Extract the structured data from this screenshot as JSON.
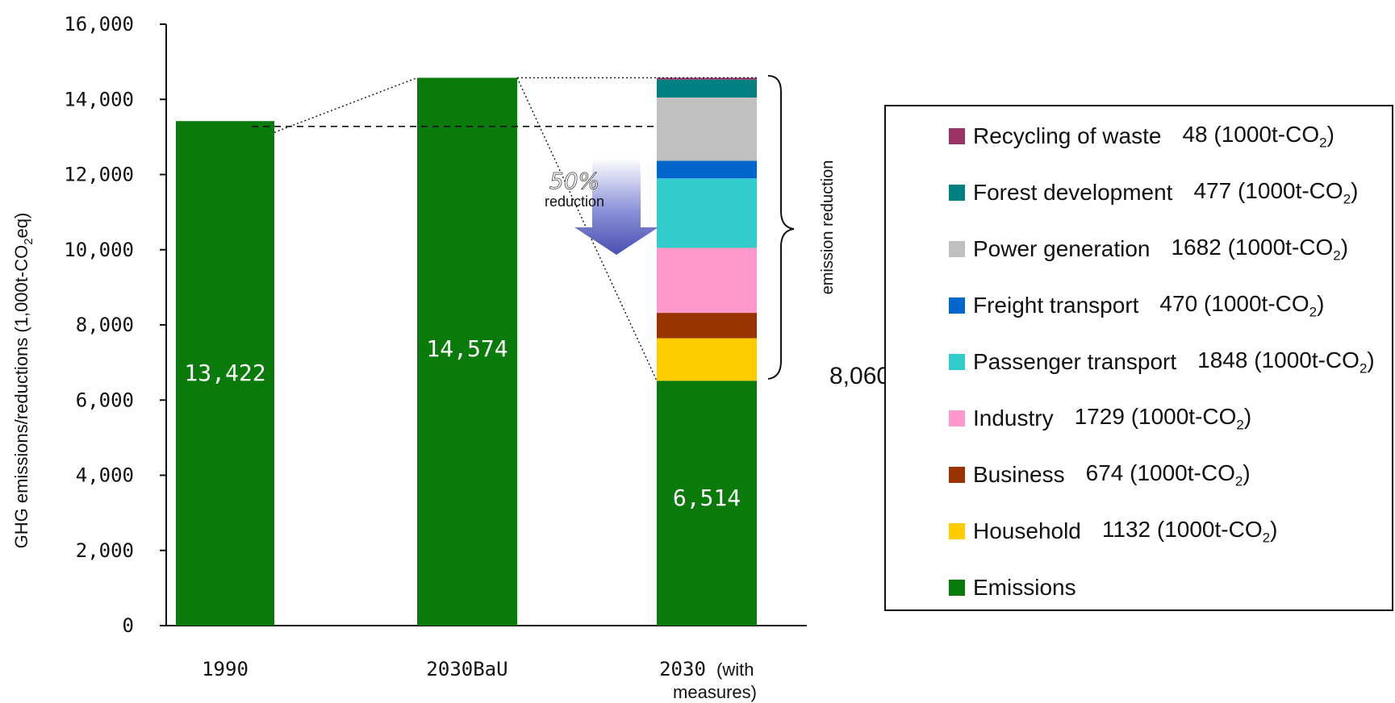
{
  "chart_data": {
    "type": "bar",
    "ylabel_main": "GHG emissions/reductions (1,000t-CO",
    "ylabel_sub": "2",
    "ylabel_end": "eq)",
    "ylim": [
      0,
      16000
    ],
    "yticks": [
      0,
      2000,
      4000,
      6000,
      8000,
      10000,
      12000,
      14000,
      16000
    ],
    "ytick_labels": [
      "0",
      "2,000",
      "4,000",
      "6,000",
      "8,000",
      "10,000",
      "12,000",
      "14,000",
      "16,000"
    ],
    "categories": [
      "1990",
      "2030BaU",
      "2030"
    ],
    "category_suffix": [
      "",
      "",
      "(with"
    ],
    "category_line2": [
      "",
      "",
      "measures)"
    ],
    "bar_labels": [
      "13,422",
      "14,574",
      "6,514"
    ],
    "series": [
      {
        "name": "Emissions",
        "color": "#0a7a0a",
        "values": [
          13422,
          14574,
          6514
        ]
      },
      {
        "name": "Household",
        "color": "#ffcc00",
        "values": [
          0,
          0,
          1132
        ]
      },
      {
        "name": "Business",
        "color": "#993300",
        "values": [
          0,
          0,
          674
        ]
      },
      {
        "name": "Industry",
        "color": "#ff99cc",
        "values": [
          0,
          0,
          1729
        ]
      },
      {
        "name": "Passenger transport",
        "color": "#33cccc",
        "values": [
          0,
          0,
          1848
        ]
      },
      {
        "name": "Freight transport",
        "color": "#0066cc",
        "values": [
          0,
          0,
          470
        ]
      },
      {
        "name": "Power generation",
        "color": "#c0c0c0",
        "values": [
          0,
          0,
          1682
        ]
      },
      {
        "name": "Forest development",
        "color": "#008080",
        "values": [
          0,
          0,
          477
        ]
      },
      {
        "name": "Recycling of waste",
        "color": "#993366",
        "values": [
          0,
          0,
          48
        ]
      }
    ],
    "annotations": {
      "reduction_pct": "50%",
      "reduction_word": "reduction",
      "brace_label": "emission reduction",
      "reduction_total": "8,060",
      "reference_line_value": 13280
    }
  },
  "legend": {
    "unit_prefix": "(1000t-CO",
    "unit_sub": "2",
    "unit_suffix": ")",
    "items": [
      {
        "name": "Recycling of waste",
        "value": "48",
        "color": "#993366"
      },
      {
        "name": "Forest development",
        "value": "477",
        "color": "#008080"
      },
      {
        "name": "Power generation",
        "value": "1682",
        "color": "#c0c0c0"
      },
      {
        "name": "Freight transport",
        "value": "470",
        "color": "#0066cc"
      },
      {
        "name": "Passenger transport",
        "value": "1848",
        "color": "#33cccc"
      },
      {
        "name": "Industry",
        "value": "1729",
        "color": "#ff99cc"
      },
      {
        "name": "Business",
        "value": "674",
        "color": "#993300"
      },
      {
        "name": "Household",
        "value": "1132",
        "color": "#ffcc00"
      },
      {
        "name": "Emissions",
        "value": "",
        "color": "#0a7a0a"
      }
    ]
  }
}
